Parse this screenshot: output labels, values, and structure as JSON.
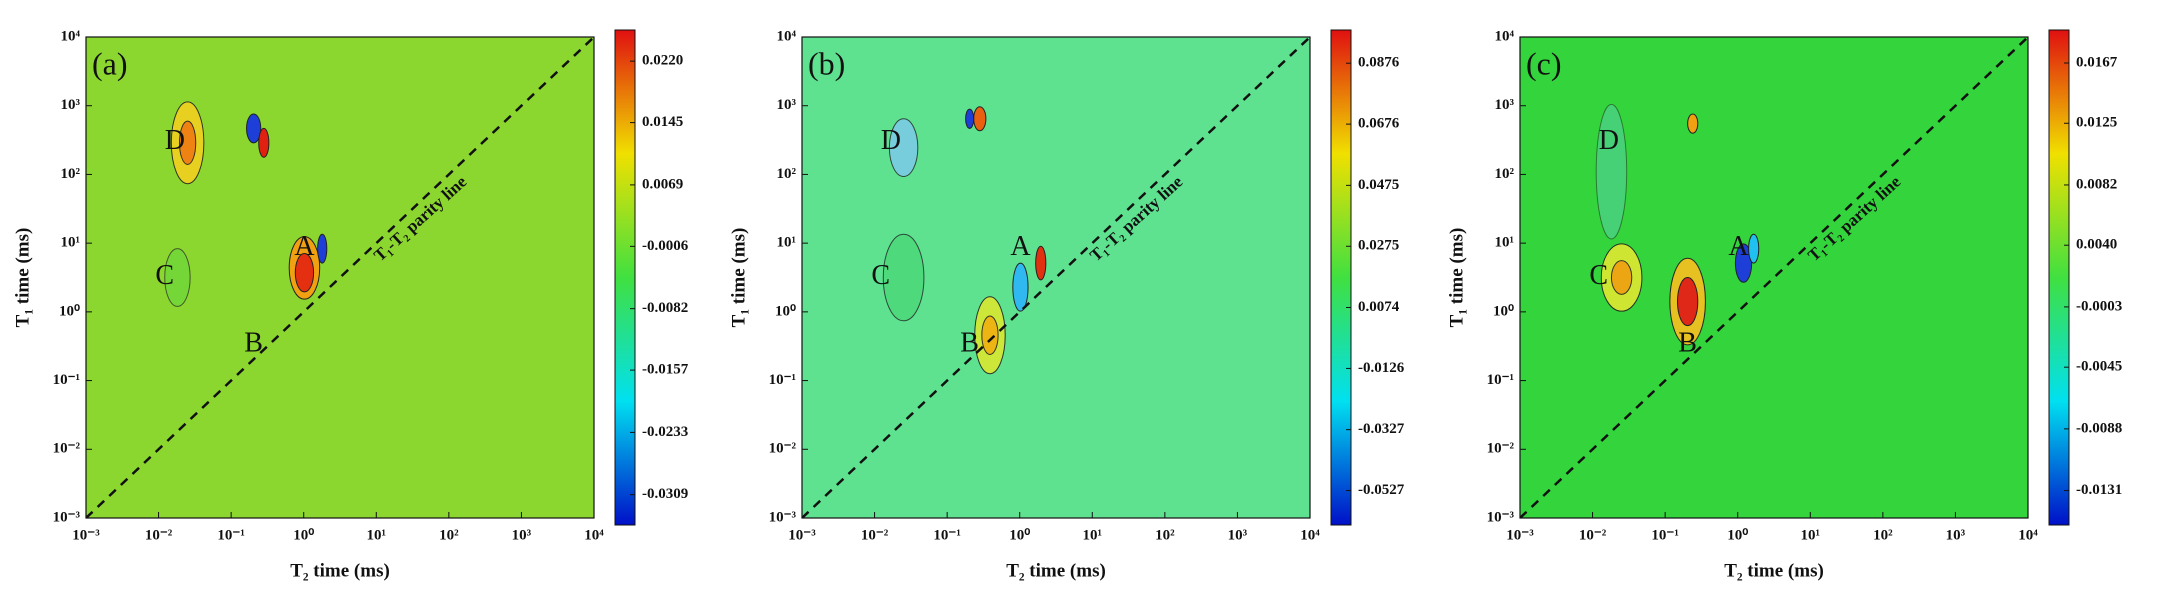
{
  "chart_data": [
    {
      "type": "heatmap",
      "panel_label": "(a)",
      "xlabel": "T₂ time (ms)",
      "ylabel": "T₁ time (ms)",
      "log_x": true,
      "log_y": true,
      "xlim": [
        0.001,
        10000
      ],
      "ylim": [
        0.001,
        10000
      ],
      "xticks": [
        {
          "value": 0.001,
          "label": "10⁻³"
        },
        {
          "value": 0.01,
          "label": "10⁻²"
        },
        {
          "value": 0.1,
          "label": "10⁻¹"
        },
        {
          "value": 1,
          "label": "10⁰"
        },
        {
          "value": 10,
          "label": "10¹"
        },
        {
          "value": 100,
          "label": "10²"
        },
        {
          "value": 1000,
          "label": "10³"
        },
        {
          "value": 10000,
          "label": "10⁴"
        }
      ],
      "yticks": [
        {
          "value": 0.001,
          "label": "10⁻³"
        },
        {
          "value": 0.01,
          "label": "10⁻²"
        },
        {
          "value": 0.1,
          "label": "10⁻¹"
        },
        {
          "value": 1,
          "label": "10⁰"
        },
        {
          "value": 10,
          "label": "10¹"
        },
        {
          "value": 100,
          "label": "10²"
        },
        {
          "value": 1000,
          "label": "10³"
        },
        {
          "value": 10000,
          "label": "10⁴"
        }
      ],
      "background": "#8cd630",
      "colormap": [
        "#0010c8",
        "#00e0f0",
        "#40e040",
        "#f0e000",
        "#e01010"
      ],
      "clim": [
        -0.0346,
        0.0258
      ],
      "cticks": [
        {
          "value": 0.022,
          "label": "0.0220"
        },
        0.0145,
        0.0069,
        -0.0006,
        -0.0082,
        -0.0157,
        -0.0233,
        -0.0309
      ],
      "annotation": "T₁-T₂ parity line",
      "region_labels": [
        "A",
        "B",
        "C",
        "D"
      ]
    },
    {
      "type": "heatmap",
      "panel_label": "(b)",
      "xlabel": "T₂ time (ms)",
      "ylabel": "T₁ time (ms)",
      "log_x": true,
      "log_y": true,
      "xlim": [
        0.001,
        10000
      ],
      "ylim": [
        0.001,
        10000
      ],
      "xticks": [
        {
          "value": 0.001,
          "label": "10⁻³"
        },
        {
          "value": 0.01,
          "label": "10⁻²"
        },
        {
          "value": 0.1,
          "label": "10⁻¹"
        },
        {
          "value": 1,
          "label": "10⁰"
        },
        {
          "value": 10,
          "label": "10¹"
        },
        {
          "value": 100,
          "label": "10²"
        },
        {
          "value": 1000,
          "label": "10³"
        },
        {
          "value": 10000,
          "label": "10⁴"
        }
      ],
      "yticks": [
        {
          "value": 0.001,
          "label": "10⁻³"
        },
        {
          "value": 0.01,
          "label": "10⁻²"
        },
        {
          "value": 0.1,
          "label": "10⁻¹"
        },
        {
          "value": 1,
          "label": "10⁰"
        },
        {
          "value": 10,
          "label": "10¹"
        },
        {
          "value": 100,
          "label": "10²"
        },
        {
          "value": 1000,
          "label": "10³"
        },
        {
          "value": 10000,
          "label": "10⁴"
        }
      ],
      "background": "#5ee290",
      "colormap": [
        "#0010c8",
        "#00e0f0",
        "#40e040",
        "#f0e000",
        "#e01010"
      ],
      "clim": [
        -0.064,
        0.0985
      ],
      "cticks": [
        0.0876,
        0.0676,
        0.0475,
        0.0275,
        0.0074,
        -0.0126,
        -0.0327,
        -0.0527
      ],
      "annotation": "T₁-T₂ parity line",
      "region_labels": [
        "A",
        "B",
        "C",
        "D"
      ]
    },
    {
      "type": "heatmap",
      "panel_label": "(c)",
      "xlabel": "T₂ time (ms)",
      "ylabel": "T₁ time (ms)",
      "log_x": true,
      "log_y": true,
      "xlim": [
        0.001,
        10000
      ],
      "ylim": [
        0.001,
        10000
      ],
      "xticks": [
        {
          "value": 0.001,
          "label": "10⁻³"
        },
        {
          "value": 0.01,
          "label": "10⁻²"
        },
        {
          "value": 0.1,
          "label": "10⁻¹"
        },
        {
          "value": 1,
          "label": "10⁰"
        },
        {
          "value": 10,
          "label": "10¹"
        },
        {
          "value": 100,
          "label": "10²"
        },
        {
          "value": 1000,
          "label": "10³"
        },
        {
          "value": 10000,
          "label": "10⁴"
        }
      ],
      "yticks": [
        {
          "value": 0.001,
          "label": "10⁻³"
        },
        {
          "value": 0.01,
          "label": "10⁻²"
        },
        {
          "value": 0.1,
          "label": "10⁻¹"
        },
        {
          "value": 1,
          "label": "10⁰"
        },
        {
          "value": 10,
          "label": "10¹"
        },
        {
          "value": 100,
          "label": "10²"
        },
        {
          "value": 1000,
          "label": "10³"
        },
        {
          "value": 10000,
          "label": "10⁴"
        }
      ],
      "background": "#34d43c",
      "colormap": [
        "#0010c8",
        "#00e0f0",
        "#40e040",
        "#f0e000",
        "#e01010"
      ],
      "clim": [
        -0.0155,
        0.019
      ],
      "cticks": [
        0.0167,
        0.0125,
        0.0082,
        {
          "value": 0.004,
          "label": "0.0040"
        },
        -0.0003,
        -0.0045,
        -0.0088,
        -0.0131
      ],
      "annotation": "T₁-T₂ parity line",
      "region_labels": [
        "A",
        "B",
        "C",
        "D"
      ]
    }
  ]
}
